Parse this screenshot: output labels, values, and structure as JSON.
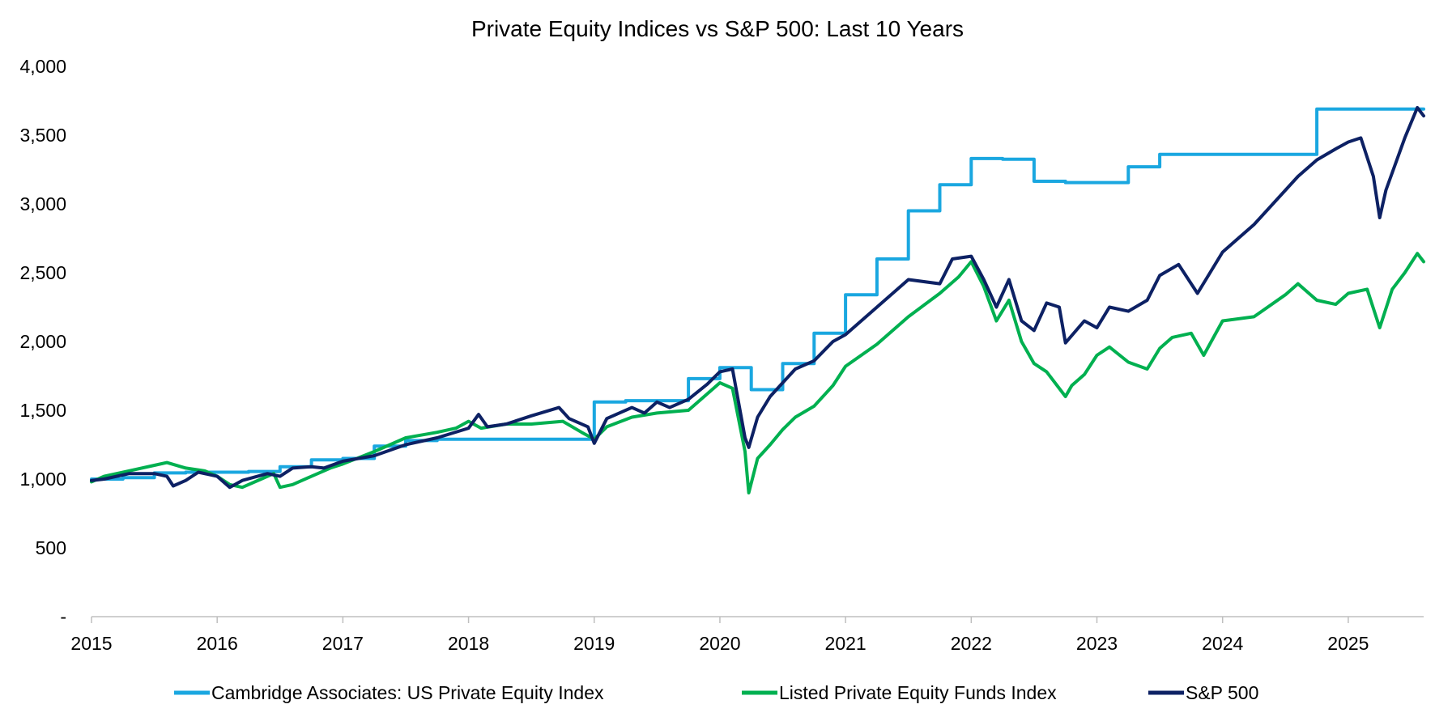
{
  "chart_data": {
    "type": "line",
    "title": "Private Equity Indices vs S&P 500: Last 10 Years",
    "xlabel": "",
    "ylabel": "",
    "xlim": [
      2015.0,
      2025.6
    ],
    "ylim": [
      0,
      4000
    ],
    "x_ticks": [
      "2015",
      "2016",
      "2017",
      "2018",
      "2019",
      "2020",
      "2021",
      "2022",
      "2023",
      "2024",
      "2025"
    ],
    "y_ticks": [
      {
        "value": 0,
        "label": "-"
      },
      {
        "value": 500,
        "label": "500"
      },
      {
        "value": 1000,
        "label": "1,000"
      },
      {
        "value": 1500,
        "label": "1,500"
      },
      {
        "value": 2000,
        "label": "2,000"
      },
      {
        "value": 2500,
        "label": "2,500"
      },
      {
        "value": 3000,
        "label": "3,000"
      },
      {
        "value": 3500,
        "label": "3,500"
      },
      {
        "value": 4000,
        "label": "4,000"
      }
    ],
    "grid": false,
    "legend_position": "bottom",
    "series": [
      {
        "name": "Cambridge Associates: US Private Equity Index",
        "color": "#1aa7e0",
        "step": true,
        "points": [
          [
            2015.0,
            1000
          ],
          [
            2015.25,
            1010
          ],
          [
            2015.5,
            1045
          ],
          [
            2015.75,
            1050
          ],
          [
            2016.0,
            1050
          ],
          [
            2016.25,
            1055
          ],
          [
            2016.5,
            1090
          ],
          [
            2016.75,
            1140
          ],
          [
            2017.0,
            1150
          ],
          [
            2017.25,
            1240
          ],
          [
            2017.5,
            1280
          ],
          [
            2017.75,
            1290
          ],
          [
            2018.0,
            1290
          ],
          [
            2018.25,
            1290
          ],
          [
            2018.5,
            1290
          ],
          [
            2018.75,
            1290
          ],
          [
            2019.0,
            1560
          ],
          [
            2019.25,
            1570
          ],
          [
            2019.5,
            1570
          ],
          [
            2019.75,
            1730
          ],
          [
            2020.0,
            1810
          ],
          [
            2020.25,
            1650
          ],
          [
            2020.5,
            1840
          ],
          [
            2020.75,
            2060
          ],
          [
            2021.0,
            2340
          ],
          [
            2021.25,
            2600
          ],
          [
            2021.5,
            2950
          ],
          [
            2021.75,
            3140
          ],
          [
            2022.0,
            3330
          ],
          [
            2022.25,
            3325
          ],
          [
            2022.5,
            3165
          ],
          [
            2022.75,
            3155
          ],
          [
            2023.0,
            3155
          ],
          [
            2023.25,
            3270
          ],
          [
            2023.5,
            3360
          ],
          [
            2023.75,
            3360
          ],
          [
            2024.0,
            3360
          ],
          [
            2024.25,
            3360
          ],
          [
            2024.5,
            3360
          ],
          [
            2024.75,
            3690
          ],
          [
            2025.0,
            3690
          ],
          [
            2025.25,
            3690
          ],
          [
            2025.6,
            3690
          ]
        ]
      },
      {
        "name": "Listed Private Equity Funds Index",
        "color": "#00b050",
        "step": false,
        "points": [
          [
            2015.0,
            980
          ],
          [
            2015.1,
            1020
          ],
          [
            2015.3,
            1060
          ],
          [
            2015.5,
            1100
          ],
          [
            2015.6,
            1120
          ],
          [
            2015.75,
            1080
          ],
          [
            2015.9,
            1060
          ],
          [
            2016.0,
            1020
          ],
          [
            2016.1,
            960
          ],
          [
            2016.2,
            940
          ],
          [
            2016.35,
            1000
          ],
          [
            2016.45,
            1040
          ],
          [
            2016.5,
            940
          ],
          [
            2016.6,
            960
          ],
          [
            2016.75,
            1020
          ],
          [
            2016.9,
            1080
          ],
          [
            2017.0,
            1110
          ],
          [
            2017.25,
            1200
          ],
          [
            2017.5,
            1300
          ],
          [
            2017.75,
            1340
          ],
          [
            2017.9,
            1370
          ],
          [
            2018.0,
            1420
          ],
          [
            2018.1,
            1370
          ],
          [
            2018.3,
            1400
          ],
          [
            2018.5,
            1400
          ],
          [
            2018.75,
            1420
          ],
          [
            2018.9,
            1340
          ],
          [
            2019.0,
            1290
          ],
          [
            2019.1,
            1380
          ],
          [
            2019.3,
            1450
          ],
          [
            2019.5,
            1480
          ],
          [
            2019.75,
            1500
          ],
          [
            2019.9,
            1620
          ],
          [
            2020.0,
            1700
          ],
          [
            2020.1,
            1660
          ],
          [
            2020.2,
            1200
          ],
          [
            2020.23,
            900
          ],
          [
            2020.3,
            1150
          ],
          [
            2020.4,
            1250
          ],
          [
            2020.5,
            1360
          ],
          [
            2020.6,
            1450
          ],
          [
            2020.75,
            1530
          ],
          [
            2020.9,
            1680
          ],
          [
            2021.0,
            1820
          ],
          [
            2021.25,
            1980
          ],
          [
            2021.5,
            2180
          ],
          [
            2021.75,
            2350
          ],
          [
            2021.9,
            2470
          ],
          [
            2022.0,
            2580
          ],
          [
            2022.1,
            2400
          ],
          [
            2022.2,
            2150
          ],
          [
            2022.3,
            2300
          ],
          [
            2022.4,
            2000
          ],
          [
            2022.5,
            1840
          ],
          [
            2022.6,
            1780
          ],
          [
            2022.75,
            1600
          ],
          [
            2022.8,
            1680
          ],
          [
            2022.9,
            1760
          ],
          [
            2023.0,
            1900
          ],
          [
            2023.1,
            1960
          ],
          [
            2023.25,
            1850
          ],
          [
            2023.4,
            1800
          ],
          [
            2023.5,
            1950
          ],
          [
            2023.6,
            2030
          ],
          [
            2023.75,
            2060
          ],
          [
            2023.85,
            1900
          ],
          [
            2024.0,
            2150
          ],
          [
            2024.25,
            2180
          ],
          [
            2024.5,
            2340
          ],
          [
            2024.6,
            2420
          ],
          [
            2024.75,
            2300
          ],
          [
            2024.9,
            2270
          ],
          [
            2025.0,
            2350
          ],
          [
            2025.15,
            2380
          ],
          [
            2025.25,
            2100
          ],
          [
            2025.35,
            2380
          ],
          [
            2025.45,
            2500
          ],
          [
            2025.55,
            2640
          ],
          [
            2025.6,
            2580
          ]
        ]
      },
      {
        "name": "S&P 500",
        "color": "#0d2164",
        "step": false,
        "points": [
          [
            2015.0,
            990
          ],
          [
            2015.1,
            1000
          ],
          [
            2015.3,
            1040
          ],
          [
            2015.5,
            1040
          ],
          [
            2015.6,
            1020
          ],
          [
            2015.65,
            950
          ],
          [
            2015.75,
            990
          ],
          [
            2015.85,
            1050
          ],
          [
            2016.0,
            1020
          ],
          [
            2016.1,
            940
          ],
          [
            2016.2,
            990
          ],
          [
            2016.4,
            1040
          ],
          [
            2016.5,
            1020
          ],
          [
            2016.6,
            1080
          ],
          [
            2016.75,
            1090
          ],
          [
            2016.85,
            1080
          ],
          [
            2017.0,
            1130
          ],
          [
            2017.25,
            1170
          ],
          [
            2017.5,
            1250
          ],
          [
            2017.75,
            1300
          ],
          [
            2018.0,
            1370
          ],
          [
            2018.08,
            1470
          ],
          [
            2018.15,
            1380
          ],
          [
            2018.3,
            1400
          ],
          [
            2018.5,
            1460
          ],
          [
            2018.72,
            1520
          ],
          [
            2018.8,
            1440
          ],
          [
            2018.95,
            1380
          ],
          [
            2019.0,
            1260
          ],
          [
            2019.1,
            1440
          ],
          [
            2019.3,
            1520
          ],
          [
            2019.4,
            1480
          ],
          [
            2019.5,
            1560
          ],
          [
            2019.6,
            1520
          ],
          [
            2019.75,
            1580
          ],
          [
            2019.9,
            1690
          ],
          [
            2020.0,
            1780
          ],
          [
            2020.1,
            1800
          ],
          [
            2020.2,
            1300
          ],
          [
            2020.23,
            1230
          ],
          [
            2020.3,
            1450
          ],
          [
            2020.4,
            1600
          ],
          [
            2020.5,
            1700
          ],
          [
            2020.6,
            1800
          ],
          [
            2020.75,
            1860
          ],
          [
            2020.9,
            2000
          ],
          [
            2021.0,
            2050
          ],
          [
            2021.25,
            2250
          ],
          [
            2021.5,
            2450
          ],
          [
            2021.75,
            2420
          ],
          [
            2021.85,
            2600
          ],
          [
            2022.0,
            2620
          ],
          [
            2022.1,
            2450
          ],
          [
            2022.2,
            2250
          ],
          [
            2022.3,
            2450
          ],
          [
            2022.4,
            2150
          ],
          [
            2022.5,
            2080
          ],
          [
            2022.6,
            2280
          ],
          [
            2022.7,
            2250
          ],
          [
            2022.75,
            1990
          ],
          [
            2022.9,
            2150
          ],
          [
            2023.0,
            2100
          ],
          [
            2023.1,
            2250
          ],
          [
            2023.25,
            2220
          ],
          [
            2023.4,
            2300
          ],
          [
            2023.5,
            2480
          ],
          [
            2023.65,
            2560
          ],
          [
            2023.8,
            2350
          ],
          [
            2024.0,
            2650
          ],
          [
            2024.25,
            2850
          ],
          [
            2024.5,
            3100
          ],
          [
            2024.6,
            3200
          ],
          [
            2024.75,
            3320
          ],
          [
            2024.9,
            3400
          ],
          [
            2025.0,
            3450
          ],
          [
            2025.1,
            3480
          ],
          [
            2025.2,
            3200
          ],
          [
            2025.25,
            2900
          ],
          [
            2025.3,
            3100
          ],
          [
            2025.45,
            3480
          ],
          [
            2025.55,
            3700
          ],
          [
            2025.6,
            3640
          ]
        ]
      }
    ]
  }
}
